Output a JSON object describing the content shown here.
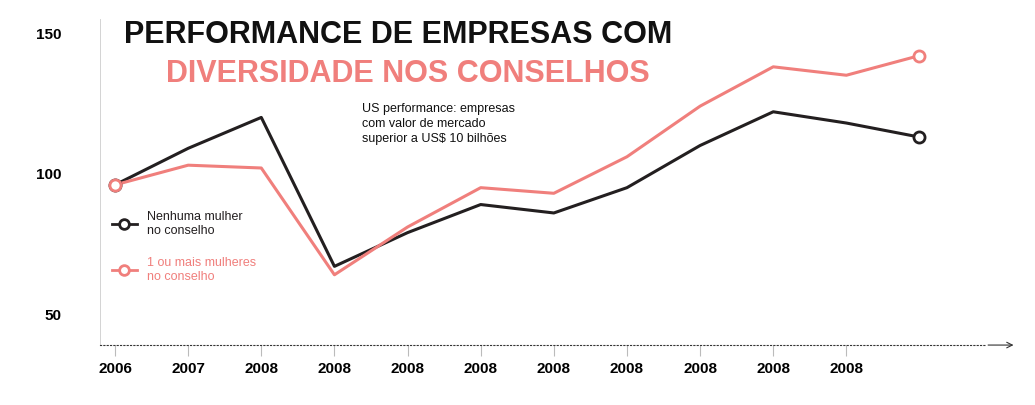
{
  "chart_data": {
    "type": "line",
    "title": "PERFORMANCE DE EMPRESAS COM",
    "subtitle": "DIVERSIDADE NOS CONSELHOS",
    "annotation": "US performance: empresas\ncom valor de mercado\nsuperior a US$ 10 bilhões",
    "categories": [
      "2006",
      "2007",
      "2008",
      "2008",
      "2008",
      "2008",
      "2008",
      "2008",
      "2008",
      "2008",
      "2008",
      null
    ],
    "series": [
      {
        "name": "Nenhuma mulher\nno conselho",
        "color": "#231f20",
        "values": [
          96,
          109,
          120,
          67,
          79,
          89,
          86,
          95,
          110,
          122,
          118,
          113
        ]
      },
      {
        "name": "1 ou mais mulheres\nno conselho",
        "color": "#f07f7c",
        "values": [
          96,
          103,
          102,
          64,
          81,
          95,
          93,
          106,
          124,
          138,
          135,
          142
        ]
      }
    ],
    "ylim": [
      39,
      155
    ],
    "yticks": [
      50,
      100,
      150
    ],
    "grid": false,
    "legend": "center left"
  }
}
